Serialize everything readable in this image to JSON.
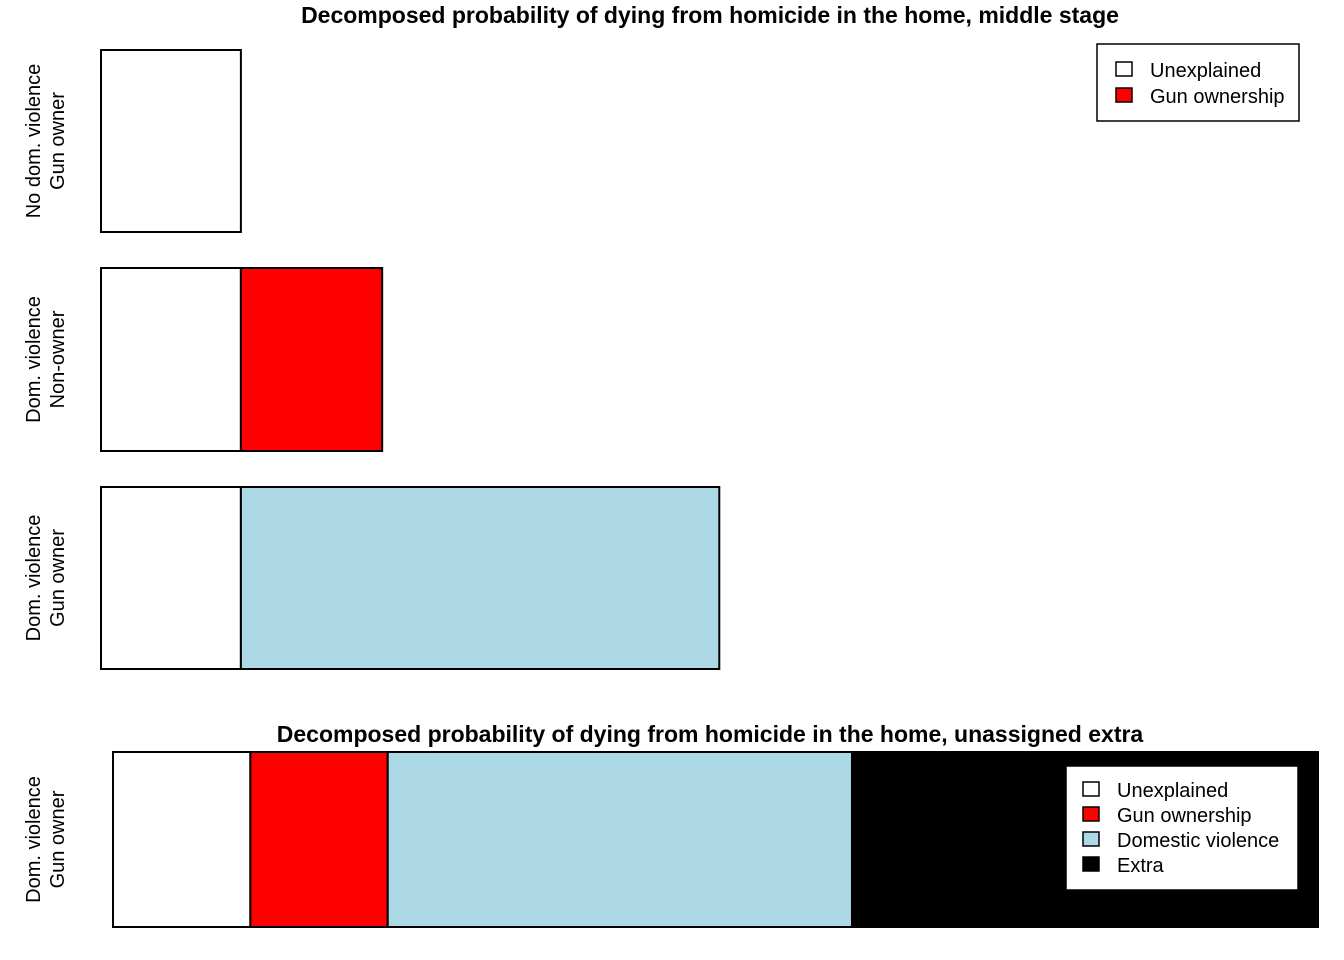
{
  "colors": {
    "Unexplained": "#ffffff",
    "Gun ownership": "#ff0000",
    "Domestic violence": "#add8e6",
    "Extra": "#000000"
  },
  "chart_data": [
    {
      "type": "bar",
      "orientation": "horizontal",
      "stacked": true,
      "title": "Decomposed probability of dying from homicide in the home, middle stage",
      "categories": [
        [
          "No dom. violence",
          "Gun owner"
        ],
        [
          "Dom. violence",
          "Non-owner"
        ],
        [
          "Dom. violence",
          "Gun owner"
        ]
      ],
      "series": [
        {
          "name": "Unexplained",
          "values": [
            1.0,
            1.0,
            1.0
          ]
        },
        {
          "name": "Gun ownership",
          "values": [
            0,
            1.01,
            0
          ]
        },
        {
          "name": "Domestic violence",
          "values": [
            0,
            0,
            3.42
          ]
        }
      ],
      "xlim": [
        0,
        8.75
      ],
      "legend": {
        "position": "top-right",
        "entries": [
          "Unexplained",
          "Gun ownership"
        ]
      },
      "axes_visible": false
    },
    {
      "type": "bar",
      "orientation": "horizontal",
      "stacked": true,
      "title": "Decomposed probability of dying from homicide in the home, unassigned extra",
      "categories": [
        [
          "Dom. violence",
          "Gun owner"
        ]
      ],
      "series": [
        {
          "name": "Unexplained",
          "values": [
            1.0
          ]
        },
        {
          "name": "Gun ownership",
          "values": [
            1.0
          ]
        },
        {
          "name": "Domestic violence",
          "values": [
            3.38
          ]
        },
        {
          "name": "Extra",
          "values": [
            3.4
          ]
        }
      ],
      "xlim": [
        0,
        8.78
      ],
      "legend": {
        "position": "right",
        "entries": [
          "Unexplained",
          "Gun ownership",
          "Domestic violence",
          "Extra"
        ]
      },
      "axes_visible": false
    }
  ]
}
